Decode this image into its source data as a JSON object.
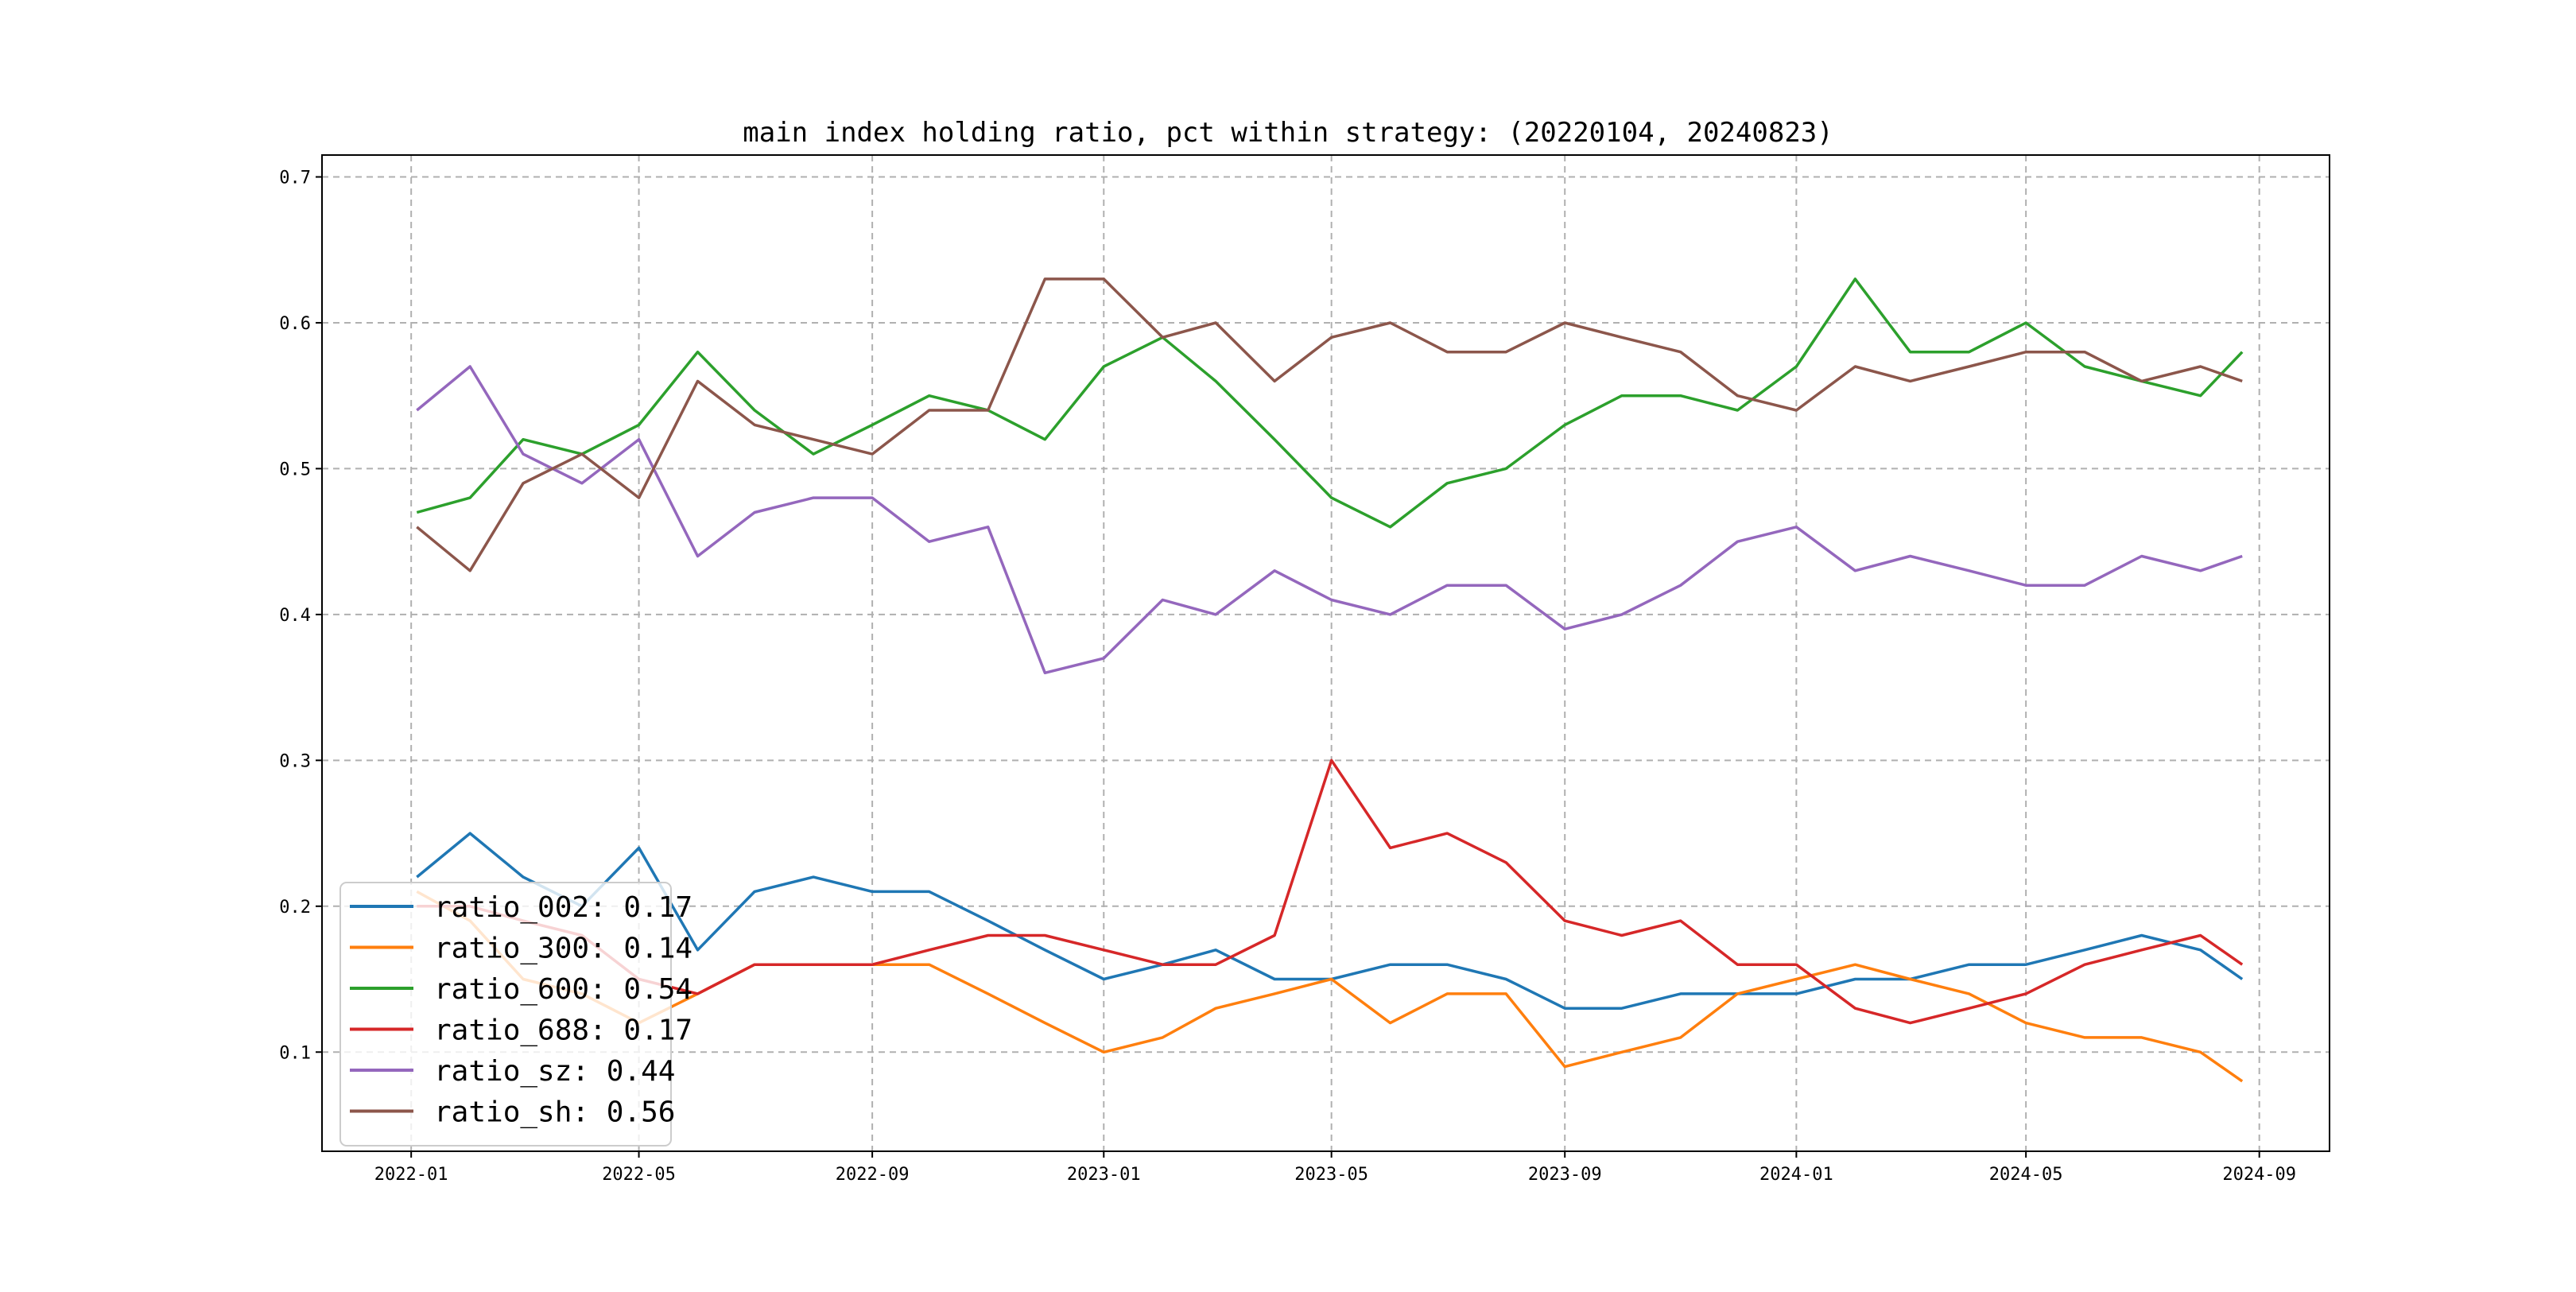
{
  "chart_data": {
    "type": "line",
    "title": "main index holding ratio, pct within strategy: (20220104, 20240823)",
    "xlabel": "",
    "ylabel": "",
    "x_range": [
      "2021-11-15",
      "2024-10-08"
    ],
    "ylim": [
      0.032,
      0.715
    ],
    "grid": true,
    "legend_position": "lower-left",
    "x_ticks": [
      {
        "date": "2022-01-01",
        "label": "2022-01"
      },
      {
        "date": "2022-05-01",
        "label": "2022-05"
      },
      {
        "date": "2022-09-01",
        "label": "2022-09"
      },
      {
        "date": "2023-01-01",
        "label": "2023-01"
      },
      {
        "date": "2023-05-01",
        "label": "2023-05"
      },
      {
        "date": "2023-09-01",
        "label": "2023-09"
      },
      {
        "date": "2024-01-01",
        "label": "2024-01"
      },
      {
        "date": "2024-05-01",
        "label": "2024-05"
      },
      {
        "date": "2024-09-01",
        "label": "2024-09"
      }
    ],
    "y_ticks": [
      {
        "value": 0.1,
        "label": "0.1"
      },
      {
        "value": 0.2,
        "label": "0.2"
      },
      {
        "value": 0.3,
        "label": "0.3"
      },
      {
        "value": 0.4,
        "label": "0.4"
      },
      {
        "value": 0.5,
        "label": "0.5"
      },
      {
        "value": 0.6,
        "label": "0.6"
      },
      {
        "value": 0.7,
        "label": "0.7"
      }
    ],
    "dates": [
      "2022-01-04",
      "2022-02-01",
      "2022-03-01",
      "2022-04-01",
      "2022-05-01",
      "2022-06-01",
      "2022-07-01",
      "2022-08-01",
      "2022-09-01",
      "2022-10-01",
      "2022-11-01",
      "2022-12-01",
      "2023-01-01",
      "2023-02-01",
      "2023-03-01",
      "2023-04-01",
      "2023-05-01",
      "2023-06-01",
      "2023-07-01",
      "2023-08-01",
      "2023-09-01",
      "2023-10-01",
      "2023-11-01",
      "2023-12-01",
      "2024-01-01",
      "2024-02-01",
      "2024-03-01",
      "2024-04-01",
      "2024-05-01",
      "2024-06-01",
      "2024-07-01",
      "2024-08-01",
      "2024-08-23"
    ],
    "series": [
      {
        "name": "ratio_002",
        "legend_label": "ratio_002: 0.17",
        "color": "#1f77b4",
        "values": [
          0.22,
          0.25,
          0.22,
          0.2,
          0.24,
          0.17,
          0.21,
          0.22,
          0.21,
          0.21,
          0.19,
          0.17,
          0.15,
          0.16,
          0.17,
          0.15,
          0.15,
          0.16,
          0.16,
          0.15,
          0.13,
          0.13,
          0.14,
          0.14,
          0.14,
          0.15,
          0.15,
          0.16,
          0.16,
          0.17,
          0.18,
          0.17,
          0.15
        ]
      },
      {
        "name": "ratio_300",
        "legend_label": "ratio_300: 0.14",
        "color": "#ff7f0e",
        "values": [
          0.21,
          0.19,
          0.15,
          0.14,
          0.12,
          0.14,
          0.16,
          0.16,
          0.16,
          0.16,
          0.14,
          0.12,
          0.1,
          0.11,
          0.13,
          0.14,
          0.15,
          0.12,
          0.14,
          0.14,
          0.09,
          0.1,
          0.11,
          0.14,
          0.15,
          0.16,
          0.15,
          0.14,
          0.12,
          0.11,
          0.11,
          0.1,
          0.08
        ]
      },
      {
        "name": "ratio_600",
        "legend_label": "ratio_600: 0.54",
        "color": "#2ca02c",
        "values": [
          0.47,
          0.48,
          0.52,
          0.51,
          0.53,
          0.58,
          0.54,
          0.51,
          0.53,
          0.55,
          0.54,
          0.52,
          0.57,
          0.59,
          0.56,
          0.52,
          0.48,
          0.46,
          0.49,
          0.5,
          0.53,
          0.55,
          0.55,
          0.54,
          0.57,
          0.63,
          0.58,
          0.58,
          0.6,
          0.57,
          0.56,
          0.55,
          0.58
        ]
      },
      {
        "name": "ratio_688",
        "legend_label": "ratio_688: 0.17",
        "color": "#d62728",
        "values": [
          0.2,
          0.2,
          0.19,
          0.18,
          0.15,
          0.14,
          0.16,
          0.16,
          0.16,
          0.17,
          0.18,
          0.18,
          0.17,
          0.16,
          0.16,
          0.18,
          0.3,
          0.24,
          0.25,
          0.23,
          0.19,
          0.18,
          0.19,
          0.16,
          0.16,
          0.13,
          0.12,
          0.13,
          0.14,
          0.16,
          0.17,
          0.18,
          0.16
        ]
      },
      {
        "name": "ratio_sz",
        "legend_label": "ratio_sz: 0.44",
        "color": "#9467bd",
        "values": [
          0.54,
          0.57,
          0.51,
          0.49,
          0.52,
          0.44,
          0.47,
          0.48,
          0.48,
          0.45,
          0.46,
          0.36,
          0.37,
          0.41,
          0.4,
          0.43,
          0.41,
          0.4,
          0.42,
          0.42,
          0.39,
          0.4,
          0.42,
          0.45,
          0.46,
          0.43,
          0.44,
          0.43,
          0.42,
          0.42,
          0.44,
          0.43,
          0.44
        ]
      },
      {
        "name": "ratio_sh",
        "legend_label": "ratio_sh: 0.56",
        "color": "#8c564b",
        "values": [
          0.46,
          0.43,
          0.49,
          0.51,
          0.48,
          0.56,
          0.53,
          0.52,
          0.51,
          0.54,
          0.54,
          0.63,
          0.63,
          0.59,
          0.6,
          0.56,
          0.59,
          0.6,
          0.58,
          0.58,
          0.6,
          0.59,
          0.58,
          0.55,
          0.54,
          0.57,
          0.56,
          0.57,
          0.58,
          0.58,
          0.56,
          0.57,
          0.56
        ]
      }
    ]
  }
}
